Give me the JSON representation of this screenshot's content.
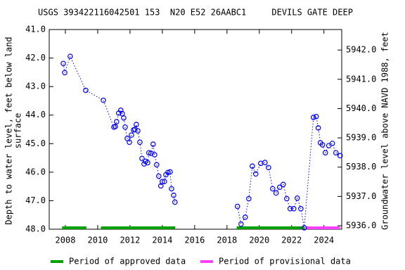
{
  "chart_data": {
    "type": "scatter",
    "title": "USGS 393422116042501 153  N20 E52 26AABC1     DEVILS GATE DEEP",
    "y_label": [
      "Depth to water level, feet below land",
      "surface"
    ],
    "y2_label": "Groundwater level above NAVD 1988, feet",
    "xlim": [
      2007.0,
      2025.1
    ],
    "xticks": [
      2008,
      2010,
      2012,
      2014,
      2016,
      2018,
      2020,
      2022,
      2024
    ],
    "ylim": [
      41.0,
      48.0
    ],
    "yticks": [
      {
        "value": 41,
        "label": "41.0"
      },
      {
        "value": 42,
        "label": "42.0"
      },
      {
        "value": 43,
        "label": "43.0"
      },
      {
        "value": 44,
        "label": "44.0"
      },
      {
        "value": 45,
        "label": "45.0"
      },
      {
        "value": 46,
        "label": "46.0"
      },
      {
        "value": 47,
        "label": "47.0"
      },
      {
        "value": 48,
        "label": "48.0"
      }
    ],
    "y2lim": [
      5942.7,
      5935.88
    ],
    "y2ticks": [
      {
        "value": 5942,
        "label": "5942.0"
      },
      {
        "value": 5941,
        "label": "5941.0"
      },
      {
        "value": 5940,
        "label": "5940.0"
      },
      {
        "value": 5939,
        "label": "5939.0"
      },
      {
        "value": 5938,
        "label": "5938.0"
      },
      {
        "value": 5937,
        "label": "5937.0"
      },
      {
        "value": 5936,
        "label": "5936.0"
      }
    ],
    "series": [
      {
        "color": "#0000ff",
        "x": [
          2007.87,
          2007.96,
          2008.3,
          2009.26,
          2010.35,
          2011.0,
          2011.09,
          2011.17,
          2011.3,
          2011.43,
          2011.52,
          2011.61,
          2011.7,
          2011.83,
          2011.96,
          2012.09,
          2012.22,
          2012.3,
          2012.39,
          2012.48,
          2012.61,
          2012.74,
          2012.87,
          2012.96,
          2013.09,
          2013.17,
          2013.3,
          2013.43,
          2013.52,
          2013.65,
          2013.78,
          2013.91,
          2014.0,
          2014.13,
          2014.22,
          2014.35,
          2014.48,
          2014.57,
          2014.7,
          2014.78,
          2016.5,
          2018.65,
          2018.87,
          2019.13,
          2019.35,
          2019.57,
          2019.78,
          2020.09,
          2020.35,
          2020.57,
          2020.83,
          2021.04,
          2021.26,
          2021.48,
          2021.7,
          2021.91,
          2022.13,
          2022.35,
          2022.57,
          2022.78,
          2023.35,
          2023.52,
          2023.65,
          2023.78,
          2023.91,
          2024.09,
          2024.3,
          2024.52,
          2024.74,
          2025.0
        ],
        "values": [
          42.19,
          42.51,
          41.94,
          43.13,
          43.48,
          44.42,
          44.4,
          44.23,
          43.93,
          43.83,
          43.95,
          44.1,
          44.42,
          44.82,
          44.95,
          44.7,
          44.52,
          44.5,
          44.33,
          44.55,
          44.95,
          45.52,
          45.71,
          45.62,
          45.67,
          45.32,
          45.34,
          45.02,
          45.39,
          45.74,
          46.14,
          46.48,
          46.33,
          46.33,
          46.09,
          46.01,
          45.99,
          46.58,
          46.81,
          47.05,
          null,
          47.2,
          47.82,
          47.58,
          46.93,
          45.79,
          46.06,
          45.69,
          45.66,
          45.84,
          46.58,
          46.73,
          46.53,
          46.43,
          46.93,
          47.28,
          47.28,
          46.91,
          47.28,
          47.95,
          44.08,
          44.05,
          44.45,
          44.97,
          45.04,
          45.32,
          45.07,
          44.99,
          45.32,
          45.42
        ]
      }
    ],
    "periods": [
      {
        "name": "Period of approved data",
        "color": "#00a000",
        "spans": [
          [
            2007.8,
            2009.3
          ],
          [
            2010.2,
            2014.8
          ],
          [
            2018.6,
            2022.8
          ]
        ]
      },
      {
        "name": "Period of provisional data",
        "color": "#ff40ff",
        "spans": [
          [
            2022.85,
            2025.0
          ]
        ]
      }
    ]
  }
}
